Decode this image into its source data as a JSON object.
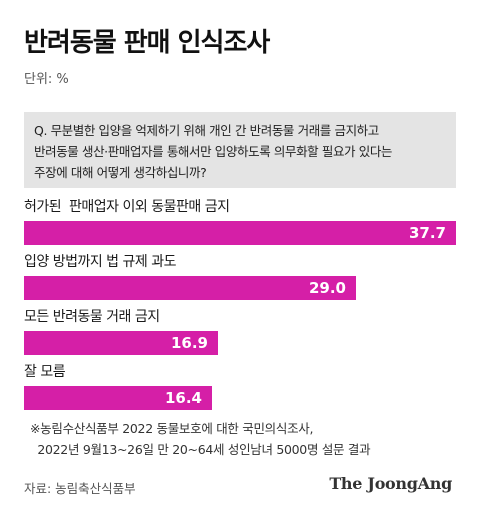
{
  "title": "반려동물 판매 인식조사",
  "unit": "단위: %",
  "question": {
    "lines": [
      "Q. 무분별한 입양을 억제하기 위해 개인 간 반려동물 거래를 금지하고",
      "반려동물 생산·판매업자를 통해서만 입양하도록 의무화할 필요가 있다는",
      "주장에 대해 어떻게 생각하십니까?"
    ]
  },
  "chart_data": {
    "type": "bar",
    "orientation": "horizontal",
    "categories": [
      "허가된  판매업자 이외 동물판매 금지",
      "입양 방법까지 법 규제 과도",
      "모든 반려동물 거래 금지",
      "잘 모름"
    ],
    "values": [
      37.7,
      29.0,
      16.9,
      16.4
    ],
    "value_labels": [
      "37.7",
      "29.0",
      "16.9",
      "16.4"
    ],
    "xlim": [
      0,
      37.7
    ],
    "bar_color": "#d51fa7"
  },
  "note": {
    "lines": [
      "※농림수산식품부 2022 동물보호에 대한 국민의식조사,",
      "  2022년 9월13~26일 만 20~64세 성인남녀 5000명 설문 결과"
    ]
  },
  "source": "자료: 농림축산식품부",
  "brand": "The JoongAng"
}
